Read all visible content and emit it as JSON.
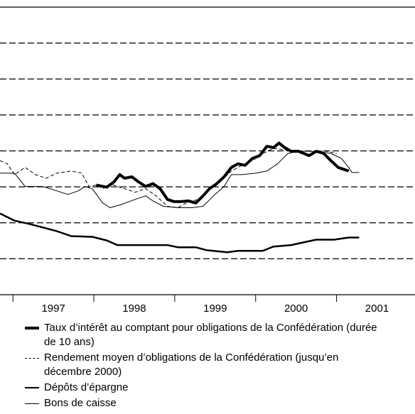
{
  "chart_data": {
    "type": "line",
    "xlim": [
      1996.84,
      2001.97
    ],
    "xticks": [
      1997,
      1998,
      1999,
      2000,
      2001
    ],
    "ylim": [
      0,
      8
    ],
    "yticks": [
      1,
      2,
      3,
      4,
      5,
      6,
      7
    ],
    "grid": true,
    "series": [
      {
        "name": "Taux d’intérêt au comptant pour obligations de la Confédération (durée de 10 ans)",
        "color": "#000000",
        "line_width": 4,
        "dash": false,
        "x": [
          1998.03,
          1998.16,
          1998.25,
          1998.32,
          1998.38,
          1998.47,
          1998.55,
          1998.64,
          1998.73,
          1998.82,
          1998.91,
          1998.99,
          1999.08,
          1999.17,
          1999.26,
          1999.35,
          1999.43,
          1999.52,
          1999.61,
          1999.7,
          1999.78,
          1999.87,
          1999.96,
          2000.05,
          2000.14,
          2000.22,
          2000.29,
          2000.36,
          2000.44,
          2000.53,
          2000.66,
          2000.75,
          2000.84,
          2000.93,
          2001.02,
          2001.15
        ],
        "values": [
          3.05,
          2.99,
          3.14,
          3.34,
          3.24,
          3.28,
          3.14,
          3.01,
          3.09,
          2.95,
          2.65,
          2.59,
          2.59,
          2.61,
          2.55,
          2.75,
          2.95,
          3.09,
          3.28,
          3.54,
          3.64,
          3.6,
          3.79,
          3.87,
          4.13,
          4.09,
          4.22,
          4.09,
          3.99,
          3.99,
          3.87,
          3.99,
          3.93,
          3.73,
          3.54,
          3.44
        ]
      },
      {
        "name": "Rendement moyen d’obligations de la Confédération (jusqu’en décembre 2000)",
        "color": "#000000",
        "line_width": 1,
        "dash": true,
        "x": [
          1996.84,
          1996.93,
          1997.02,
          1997.15,
          1997.28,
          1997.41,
          1997.54,
          1997.72,
          1997.85,
          1997.94,
          1998.03,
          1998.11,
          1998.2,
          1998.29,
          1998.38,
          1998.51,
          1998.64,
          1998.77,
          1998.91,
          1999.04,
          1999.17,
          1999.3,
          1999.43,
          1999.56,
          1999.7,
          1999.83,
          1999.96,
          2000.09,
          2000.22,
          2000.36,
          2000.53,
          2000.71,
          2000.88,
          2001.0
        ],
        "values": [
          3.73,
          3.64,
          3.34,
          3.54,
          3.34,
          3.24,
          3.38,
          3.44,
          3.38,
          3.01,
          3.05,
          2.95,
          3.09,
          3.01,
          2.95,
          2.85,
          2.95,
          2.75,
          2.46,
          2.42,
          2.59,
          2.65,
          2.95,
          3.14,
          3.44,
          3.6,
          3.73,
          3.93,
          4.07,
          4.03,
          3.99,
          3.99,
          3.99,
          3.93
        ]
      },
      {
        "name": "Dépôts d’épargne",
        "color": "#000000",
        "line_width": 2.5,
        "dash": false,
        "x": [
          1996.84,
          1997.02,
          1997.2,
          1997.37,
          1997.54,
          1997.72,
          1997.98,
          1998.16,
          1998.29,
          1998.6,
          1998.91,
          1999.04,
          1999.26,
          1999.39,
          1999.65,
          1999.78,
          2000.09,
          2000.22,
          2000.44,
          2000.62,
          2000.75,
          2000.97,
          2001.15,
          2001.28
        ],
        "values": [
          2.26,
          2.06,
          1.97,
          1.87,
          1.77,
          1.63,
          1.61,
          1.51,
          1.38,
          1.38,
          1.38,
          1.32,
          1.32,
          1.24,
          1.18,
          1.22,
          1.22,
          1.34,
          1.38,
          1.47,
          1.53,
          1.53,
          1.59,
          1.59
        ]
      },
      {
        "name": "Bons de caisse",
        "color": "#000000",
        "line_width": 1,
        "dash": false,
        "x": [
          1996.84,
          1997.02,
          1997.15,
          1997.37,
          1997.54,
          1997.68,
          1997.81,
          1997.89,
          1997.98,
          1998.11,
          1998.2,
          1998.33,
          1998.51,
          1998.64,
          1998.73,
          1998.86,
          1999.04,
          1999.21,
          1999.35,
          1999.48,
          1999.61,
          1999.7,
          1999.83,
          2000.0,
          2000.14,
          2000.27,
          2000.4,
          2000.53,
          2000.66,
          2000.8,
          2000.93,
          2001.06,
          2001.15,
          2001.19,
          2001.28
        ],
        "values": [
          3.38,
          3.38,
          3.01,
          3.01,
          2.89,
          2.79,
          2.89,
          3.01,
          2.95,
          2.55,
          2.42,
          2.5,
          2.65,
          2.75,
          2.61,
          2.46,
          2.42,
          2.42,
          2.46,
          2.75,
          3.01,
          3.34,
          3.34,
          3.38,
          3.44,
          3.64,
          3.93,
          3.99,
          3.99,
          3.97,
          3.93,
          3.79,
          3.54,
          3.4,
          3.4
        ]
      }
    ]
  }
}
